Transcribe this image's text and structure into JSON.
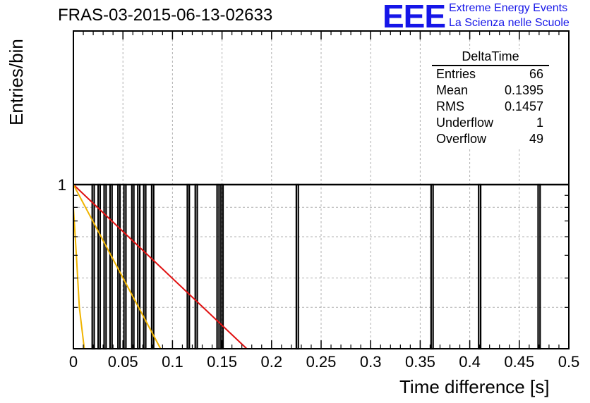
{
  "header": {
    "title": "FRAS-03-2015-06-13-02633",
    "logo_text": "EEE",
    "logo_line1": "Extreme Energy Events",
    "logo_line2": "La Scienza nelle Scuole"
  },
  "stats_box": {
    "title": "DeltaTime",
    "rows": [
      {
        "label": "Entries",
        "value": "66"
      },
      {
        "label": "Mean",
        "value": "0.1395"
      },
      {
        "label": "RMS",
        "value": "0.1457"
      },
      {
        "label": "Underflow",
        "value": "1"
      },
      {
        "label": "Overflow",
        "value": "49"
      }
    ]
  },
  "colors": {
    "histogram": "#000000",
    "fit_red": "#e01010",
    "fit_orange": "#f0b400",
    "grid": "#b0b0b0"
  },
  "chart_data": {
    "type": "bar",
    "xlabel": "Time difference [s]",
    "ylabel": "Entries/bin",
    "xlim": [
      0,
      0.5
    ],
    "y_log_scale": true,
    "grid": true,
    "x_ticks": [
      "0",
      "0.05",
      "0.1",
      "0.15",
      "0.2",
      "0.25",
      "0.3",
      "0.35",
      "0.4",
      "0.45",
      "0.5"
    ],
    "y_ticks": [
      "1"
    ],
    "bin_width": 0.002,
    "bins_with_one_entry": [
      0.02,
      0.026,
      0.032,
      0.038,
      0.046,
      0.052,
      0.06,
      0.066,
      0.072,
      0.08,
      0.116,
      0.124,
      0.146,
      0.15,
      0.226,
      0.362,
      0.41,
      0.47
    ],
    "fit_lines": [
      {
        "color": "red",
        "x": [
          0.0,
          0.175
        ],
        "y": [
          1.0,
          0.2
        ]
      },
      {
        "color": "orange",
        "x": [
          0.0,
          0.088
        ],
        "y": [
          1.0,
          0.2
        ]
      },
      {
        "color": "orange",
        "x": [
          0.0,
          0.003,
          0.006,
          0.011
        ],
        "y": [
          0.8,
          0.5,
          0.3,
          0.2
        ]
      }
    ]
  }
}
